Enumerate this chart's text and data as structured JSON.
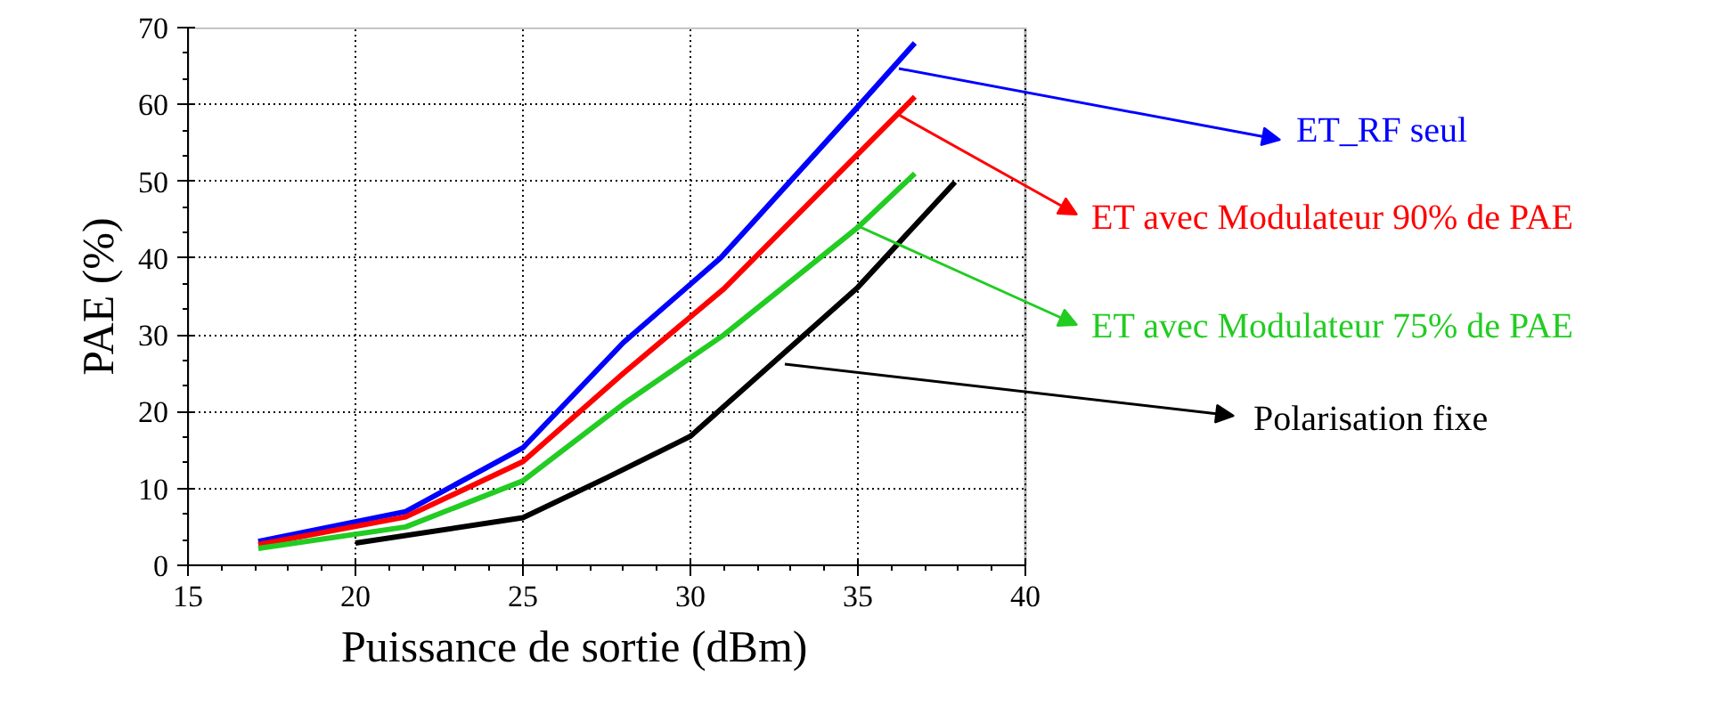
{
  "chart_data": {
    "type": "line",
    "xlabel": "Puissance de sortie (dBm)",
    "ylabel": "PAE (%)",
    "xlim": [
      15,
      40
    ],
    "xticks": [
      15,
      20,
      25,
      30,
      35,
      40
    ],
    "ylim": [
      0,
      70
    ],
    "yticks": [
      0,
      10,
      20,
      30,
      40,
      50,
      60,
      70
    ],
    "grid": true,
    "legend": "right",
    "line_style": "solid",
    "marker": "none",
    "series": [
      {
        "name": "ET_RF seul",
        "color": "#0000ff",
        "x": [
          17.1,
          21.5,
          25,
          28,
          30.9,
          35,
          36.7
        ],
        "values": [
          3.1,
          7.0,
          15.3,
          29,
          40,
          59.7,
          68
        ]
      },
      {
        "name": "ET avec Modulateur 90% de PAE",
        "color": "#ff0000",
        "x": [
          17.1,
          21.5,
          25,
          28,
          31,
          36.7
        ],
        "values": [
          2.7,
          6.3,
          13.5,
          25,
          36,
          61
        ]
      },
      {
        "name": "ET avec Modulateur 75% de PAE",
        "color": "#22cc22",
        "x": [
          17.1,
          21.5,
          25,
          28,
          31,
          35,
          36.7
        ],
        "values": [
          2.2,
          5,
          11,
          21,
          30,
          44,
          51
        ]
      },
      {
        "name": "Polarisation fixe",
        "color": "#000000",
        "x": [
          20,
          25,
          27.5,
          30,
          35,
          37.9
        ],
        "values": [
          2.9,
          6.2,
          11.4,
          16.8,
          36.2,
          49.9
        ]
      }
    ]
  }
}
